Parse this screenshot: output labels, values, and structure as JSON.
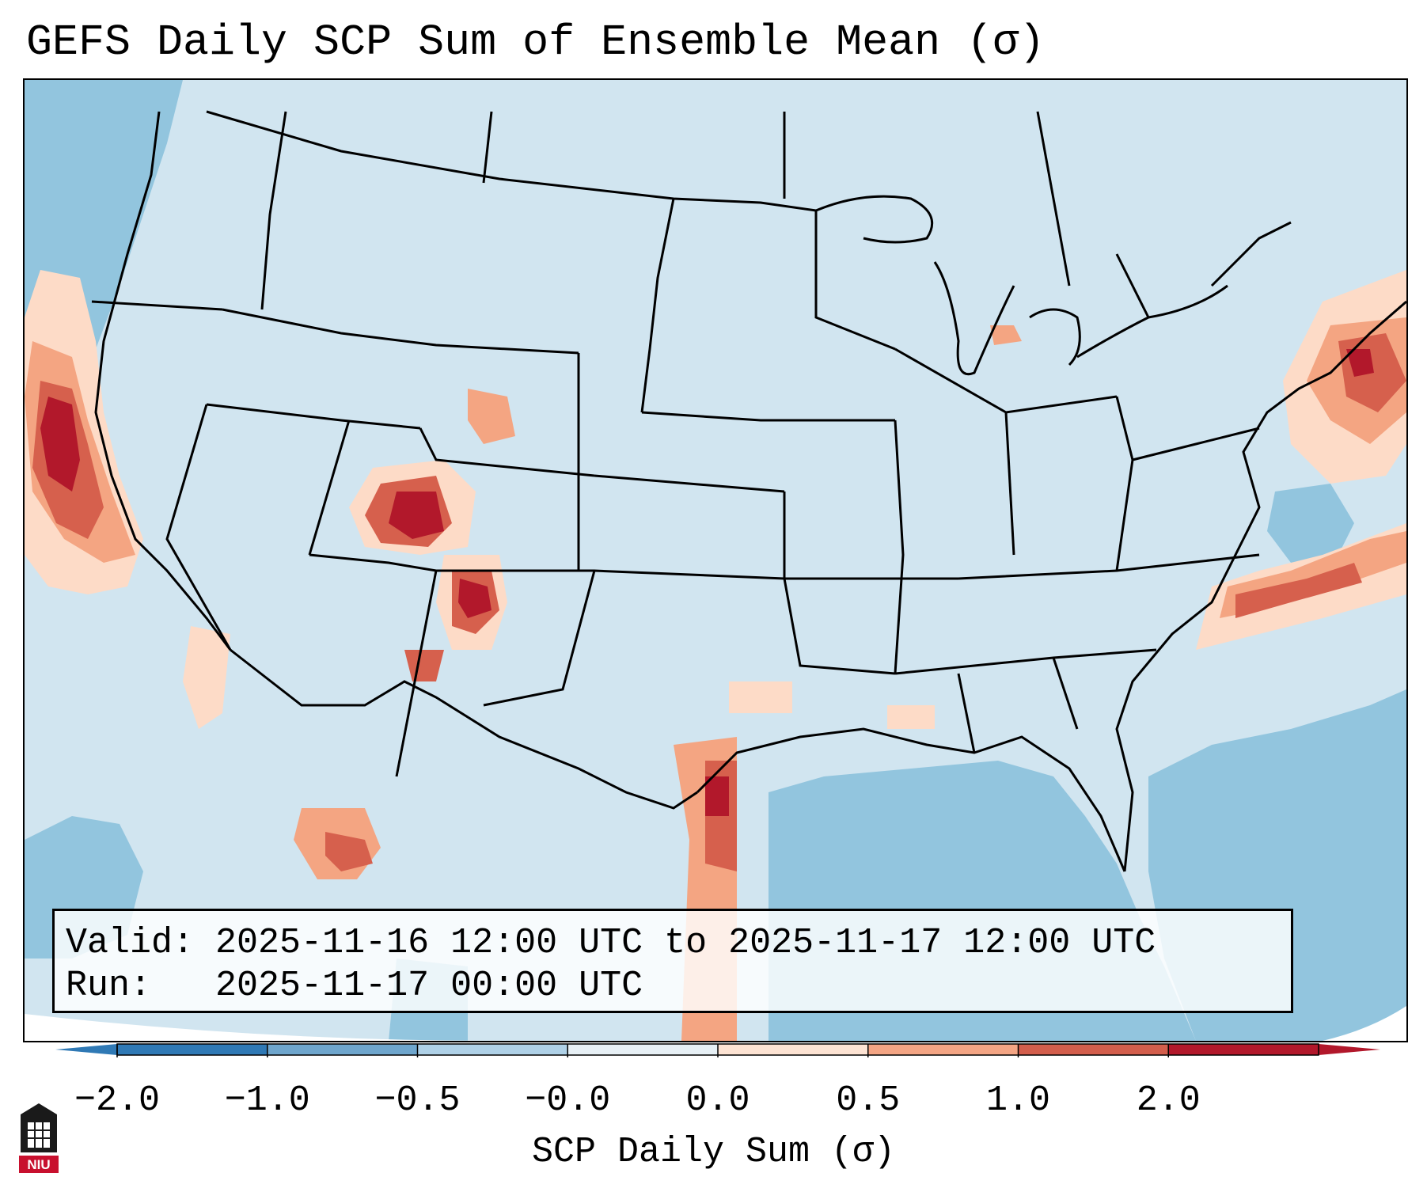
{
  "title": "GEFS Daily SCP Sum of Ensemble Mean (σ)",
  "info": {
    "valid_label": "Valid:",
    "valid_value": "2025-11-16 12:00 UTC to 2025-11-17 12:00 UTC",
    "run_label": "Run:",
    "run_value": "2025-11-17 00:00 UTC"
  },
  "colorbar": {
    "label": "SCP Daily Sum (σ)",
    "ticks": [
      "−2.0",
      "−1.0",
      "−0.5",
      "−0.0",
      "0.0",
      "0.5",
      "1.0",
      "2.0"
    ],
    "colors": [
      "#2f79b5",
      "#6fa6cd",
      "#afd1e7",
      "#e7f0f5",
      "#fde3d3",
      "#f4a584",
      "#d35e4c",
      "#b2182b"
    ]
  },
  "palette": {
    "background": "#d1e5f0",
    "ocean": "#92c5de",
    "light_pos": "#fddbc7",
    "mid_pos": "#f4a582",
    "strong_pos": "#d6604d",
    "max_pos": "#b2182b"
  },
  "logo": {
    "text": "NIU",
    "color": "#c8102e"
  }
}
